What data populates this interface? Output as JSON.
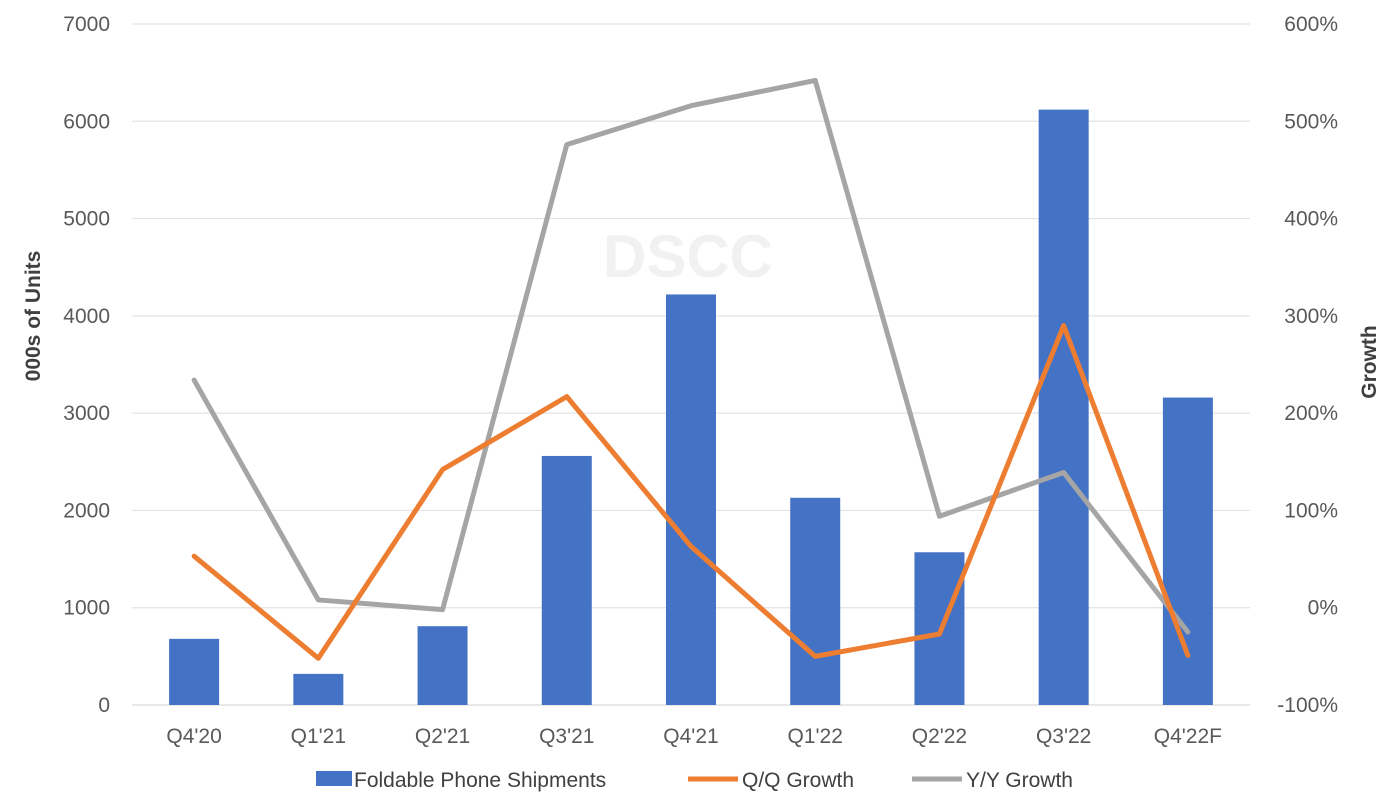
{
  "chart_data": {
    "type": "bar",
    "categories": [
      "Q4'20",
      "Q1'21",
      "Q2'21",
      "Q3'21",
      "Q4'21",
      "Q1'22",
      "Q2'22",
      "Q3'22",
      "Q4'22F"
    ],
    "series": [
      {
        "name": "Foldable Phone Shipments",
        "type": "bar",
        "axis": "left",
        "color": "#4472C4",
        "values": [
          680,
          320,
          810,
          2560,
          4220,
          2130,
          1570,
          6120,
          3160
        ]
      },
      {
        "name": "Q/Q Growth",
        "type": "line",
        "axis": "right",
        "color": "#ED7D31",
        "values": [
          53,
          -52,
          142,
          217,
          63,
          -50,
          -27,
          290,
          -49
        ]
      },
      {
        "name": "Y/Y Growth",
        "type": "line",
        "axis": "right",
        "color": "#A5A5A5",
        "values": [
          234,
          8,
          -2,
          476,
          516,
          542,
          94,
          139,
          -25
        ]
      }
    ],
    "y_left": {
      "label": "000s of Units",
      "min": 0,
      "max": 7000,
      "ticks": [
        "0",
        "1000",
        "2000",
        "3000",
        "4000",
        "5000",
        "6000",
        "7000"
      ]
    },
    "y_right": {
      "label": "Growth",
      "min": -100,
      "max": 600,
      "ticks": [
        "-100%",
        "0%",
        "100%",
        "200%",
        "300%",
        "400%",
        "500%",
        "600%"
      ]
    },
    "grid": true,
    "legend": "bottom",
    "watermark": "DSCC"
  }
}
